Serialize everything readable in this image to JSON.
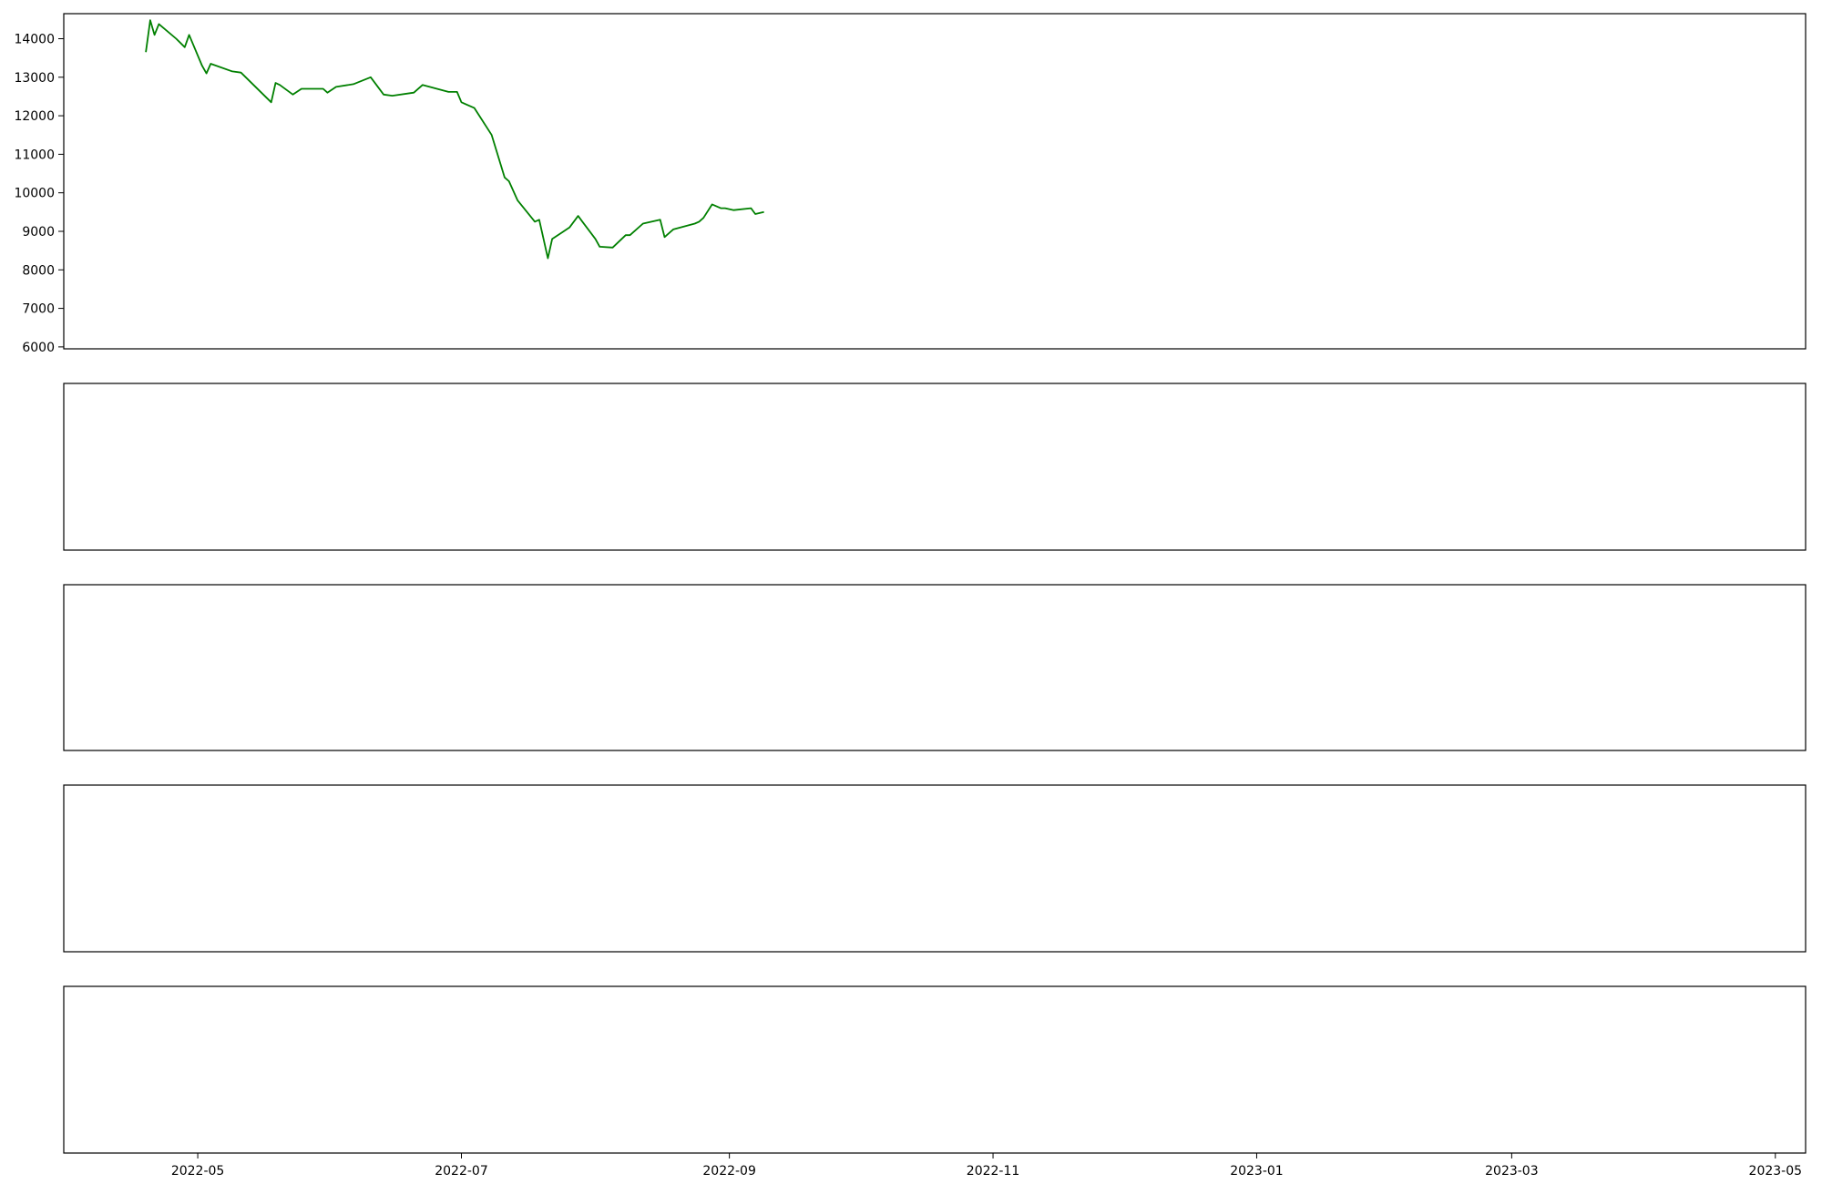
{
  "figure": {
    "x_ticks": [
      "2022-05",
      "2022-07",
      "2022-09",
      "2022-11",
      "2023-01",
      "2023-03",
      "2023-05"
    ]
  },
  "chart_data": [
    {
      "type": "line",
      "panel": "price",
      "color": "#008000",
      "ylim": [
        6000,
        14500
      ],
      "yticks": [
        6000,
        7000,
        8000,
        9000,
        10000,
        11000,
        12000,
        13000,
        14000
      ],
      "series": [
        {
          "points": [
            [
              "2022-04-19",
              13650
            ],
            [
              "2022-04-20",
              14480
            ],
            [
              "2022-04-21",
              14100
            ],
            [
              "2022-04-22",
              14380
            ],
            [
              "2022-04-26",
              14000
            ],
            [
              "2022-04-28",
              13780
            ],
            [
              "2022-04-29",
              14100
            ],
            [
              "2022-05-02",
              13300
            ],
            [
              "2022-05-03",
              13100
            ],
            [
              "2022-05-04",
              13350
            ],
            [
              "2022-05-09",
              13150
            ],
            [
              "2022-05-11",
              13120
            ],
            [
              "2022-05-18",
              12350
            ],
            [
              "2022-05-19",
              12850
            ],
            [
              "2022-05-20",
              12800
            ],
            [
              "2022-05-23",
              12550
            ],
            [
              "2022-05-25",
              12700
            ],
            [
              "2022-05-30",
              12700
            ],
            [
              "2022-05-31",
              12600
            ],
            [
              "2022-06-02",
              12750
            ],
            [
              "2022-06-06",
              12820
            ],
            [
              "2022-06-10",
              13000
            ],
            [
              "2022-06-13",
              12550
            ],
            [
              "2022-06-15",
              12520
            ],
            [
              "2022-06-20",
              12600
            ],
            [
              "2022-06-22",
              12800
            ],
            [
              "2022-06-28",
              12620
            ],
            [
              "2022-06-30",
              12620
            ],
            [
              "2022-07-01",
              12350
            ],
            [
              "2022-07-04",
              12200
            ],
            [
              "2022-07-08",
              11500
            ],
            [
              "2022-07-11",
              10400
            ],
            [
              "2022-07-12",
              10300
            ],
            [
              "2022-07-14",
              9800
            ],
            [
              "2022-07-18",
              9250
            ],
            [
              "2022-07-19",
              9300
            ],
            [
              "2022-07-21",
              8300
            ],
            [
              "2022-07-22",
              8800
            ],
            [
              "2022-07-26",
              9100
            ],
            [
              "2022-07-28",
              9400
            ],
            [
              "2022-07-29",
              9250
            ],
            [
              "2022-08-01",
              8800
            ],
            [
              "2022-08-02",
              8600
            ],
            [
              "2022-08-05",
              8580
            ],
            [
              "2022-08-08",
              8900
            ],
            [
              "2022-08-09",
              8900
            ],
            [
              "2022-08-12",
              9200
            ],
            [
              "2022-08-16",
              9300
            ],
            [
              "2022-08-17",
              8850
            ],
            [
              "2022-08-19",
              9050
            ],
            [
              "2022-08-24",
              9200
            ],
            [
              "2022-08-25",
              9250
            ],
            [
              "2022-08-26",
              9350
            ],
            [
              "2022-08-28",
              9700
            ],
            [
              "2022-08-30",
              9600
            ],
            [
              "2022-08-31",
              9600
            ],
            [
              "2022-09-02",
              9550
            ],
            [
              "2022-09-06",
              9600
            ],
            [
              "2022-09-07",
              9450
            ],
            [
              "2022-09-09",
              9500
            ]
          ]
        }
      ]
    }
  ]
}
